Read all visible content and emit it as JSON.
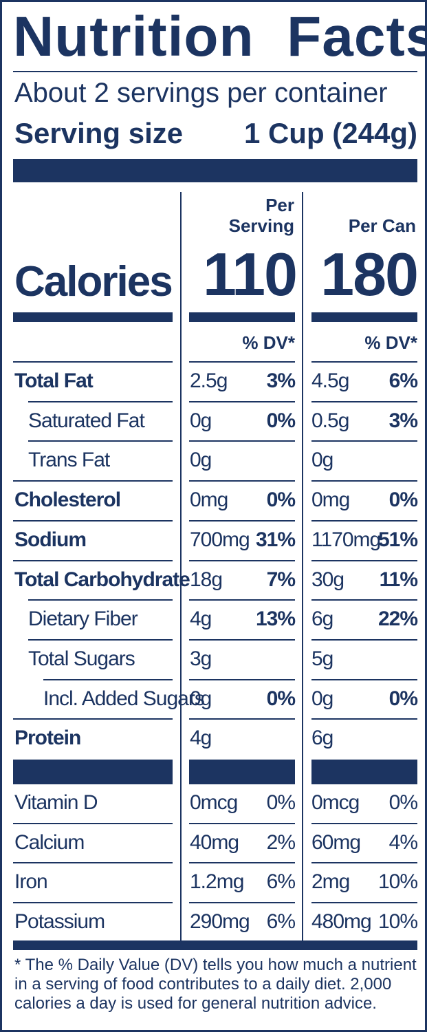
{
  "header": {
    "title_left": "Nutrition",
    "title_right": "Facts",
    "servings_per_container": "About 2 servings per container",
    "serving_size_label": "Serving size",
    "serving_size_value": "1 Cup (244g)"
  },
  "columns": {
    "serving": {
      "top": "Per",
      "bottom": "Serving",
      "calories": "110",
      "dv": "% DV*"
    },
    "can": {
      "top": "Per Can",
      "calories": "180",
      "dv": "% DV*"
    }
  },
  "calories_label": "Calories",
  "nutrients": [
    {
      "name": "Total Fat",
      "bold": true,
      "indent": 0,
      "serving_amt": "2.5g",
      "serving_pct": "3%",
      "can_amt": "4.5g",
      "can_pct": "6%"
    },
    {
      "name": "Saturated Fat",
      "bold": false,
      "indent": 1,
      "serving_amt": "0g",
      "serving_pct": "0%",
      "can_amt": "0.5g",
      "can_pct": "3%"
    },
    {
      "name": "Trans Fat",
      "bold": false,
      "indent": 1,
      "serving_amt": "0g",
      "serving_pct": "",
      "can_amt": "0g",
      "can_pct": ""
    },
    {
      "name": "Cholesterol",
      "bold": true,
      "indent": 0,
      "serving_amt": "0mg",
      "serving_pct": "0%",
      "can_amt": "0mg",
      "can_pct": "0%"
    },
    {
      "name": "Sodium",
      "bold": true,
      "indent": 0,
      "serving_amt": "700mg",
      "serving_pct": "31%",
      "can_amt": "1170mg",
      "can_pct": "51%"
    },
    {
      "name": "Total Carbohydrate",
      "bold": true,
      "indent": 0,
      "serving_amt": "18g",
      "serving_pct": "7%",
      "can_amt": "30g",
      "can_pct": "11%"
    },
    {
      "name": "Dietary Fiber",
      "bold": false,
      "indent": 1,
      "serving_amt": "4g",
      "serving_pct": "13%",
      "can_amt": "6g",
      "can_pct": "22%"
    },
    {
      "name": "Total Sugars",
      "bold": false,
      "indent": 1,
      "serving_amt": "3g",
      "serving_pct": "",
      "can_amt": "5g",
      "can_pct": ""
    },
    {
      "name": "Incl. Added Sugars",
      "bold": false,
      "indent": 2,
      "serving_amt": "0g",
      "serving_pct": "0%",
      "can_amt": "0g",
      "can_pct": "0%"
    },
    {
      "name": "Protein",
      "bold": true,
      "indent": 0,
      "serving_amt": "4g",
      "serving_pct": "",
      "can_amt": "6g",
      "can_pct": ""
    }
  ],
  "micronutrients": [
    {
      "name": "Vitamin D",
      "serving_amt": "0mcg",
      "serving_pct": "0%",
      "can_amt": "0mcg",
      "can_pct": "0%"
    },
    {
      "name": "Calcium",
      "serving_amt": "40mg",
      "serving_pct": "2%",
      "can_amt": "60mg",
      "can_pct": "4%"
    },
    {
      "name": "Iron",
      "serving_amt": "1.2mg",
      "serving_pct": "6%",
      "can_amt": "2mg",
      "can_pct": "10%"
    },
    {
      "name": "Potassium",
      "serving_amt": "290mg",
      "serving_pct": "6%",
      "can_amt": "480mg",
      "can_pct": "10%"
    }
  ],
  "footnote": "* The % Daily Value (DV) tells you how much a nutrient in a serving of food contributes to a daily diet. 2,000 calories a day is used for general nutrition advice.",
  "colors": {
    "ink": "#1c3461",
    "background": "#ffffff"
  }
}
